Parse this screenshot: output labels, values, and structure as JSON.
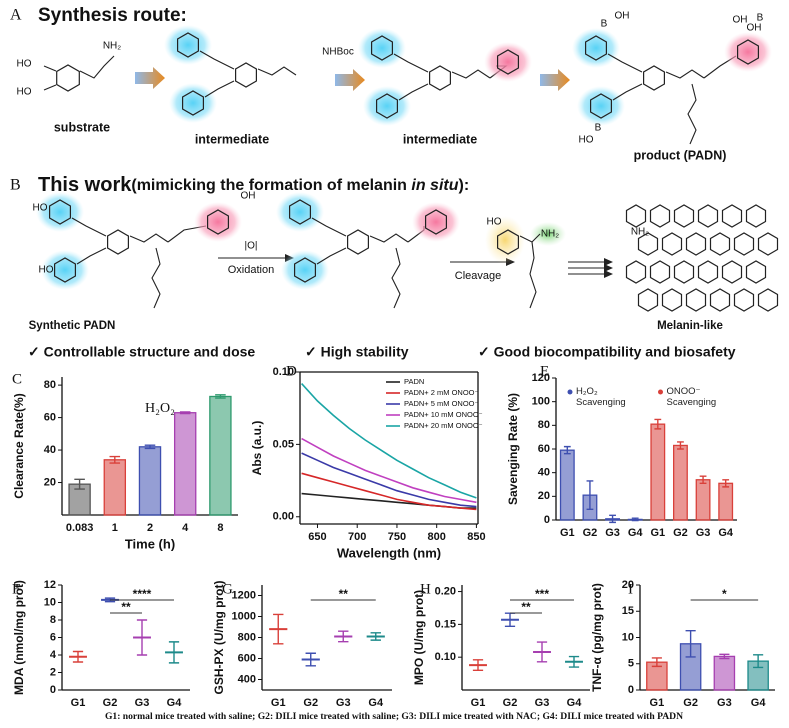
{
  "scheme_a": {
    "letter": "A",
    "title": "Synthesis route:",
    "labels": [
      "substrate",
      "intermediate",
      "intermediate",
      "product (PADN)"
    ],
    "atoms": [
      "HO",
      "HO",
      "NH₂",
      "NHBoc",
      "B",
      "OH",
      "HO",
      "B",
      "OH",
      "B",
      "OH"
    ]
  },
  "scheme_b": {
    "letter": "B",
    "title_parts": [
      "This work",
      "(mimicking the formation of melanin ",
      "in situ",
      "):"
    ],
    "labels": [
      "Synthetic PADN",
      "Melanin-like"
    ],
    "reagent": "|O|",
    "steps": [
      "Oxidation",
      "Cleavage"
    ],
    "atoms": [
      "HO",
      "HO",
      "NH₂",
      "OH",
      "HO",
      "NH₂"
    ],
    "features": [
      "✓ Controllable structure and dose",
      "✓ High stability",
      "✓ Good biocompatibility and biosafety"
    ]
  },
  "chart_data": [
    {
      "type": "bar",
      "panel": "C",
      "annotation": "H₂O₂",
      "categories": [
        "0.083",
        "1",
        "2",
        "4",
        "8"
      ],
      "values": [
        19,
        34,
        42,
        63,
        73
      ],
      "errors": [
        3,
        2,
        1,
        0.5,
        1
      ],
      "colors": [
        "#555555",
        "#d9403a",
        "#3e4fb0",
        "#a63fb0",
        "#2e9a6e"
      ],
      "ylim": [
        0,
        85
      ],
      "yticks": [
        20,
        40,
        60,
        80
      ],
      "xlabel": "Time (h)",
      "ylabel": "Clearance Rate(%)"
    },
    {
      "type": "line",
      "panel": "D",
      "box": true,
      "legend": "upper right",
      "x": [
        630,
        650,
        670,
        690,
        710,
        730,
        750,
        770,
        790,
        810,
        830,
        850
      ],
      "series": [
        {
          "name": "PADN",
          "color": "#222222",
          "values": [
            0.016,
            0.015,
            0.014,
            0.013,
            0.012,
            0.011,
            0.01,
            0.009,
            0.008,
            0.007,
            0.006,
            0.006
          ]
        },
        {
          "name": "PADN+ 2 mM ONOO⁻",
          "color": "#d62728",
          "values": [
            0.03,
            0.027,
            0.024,
            0.021,
            0.018,
            0.015,
            0.012,
            0.01,
            0.008,
            0.007,
            0.006,
            0.005
          ]
        },
        {
          "name": "PADN+ 5 mM ONOO⁻",
          "color": "#3a3aa8",
          "values": [
            0.044,
            0.039,
            0.034,
            0.03,
            0.026,
            0.022,
            0.018,
            0.015,
            0.012,
            0.01,
            0.008,
            0.007
          ]
        },
        {
          "name": "PADN+ 10 mM ONOO⁻",
          "color": "#c040c0",
          "values": [
            0.054,
            0.048,
            0.042,
            0.037,
            0.032,
            0.028,
            0.024,
            0.02,
            0.017,
            0.014,
            0.012,
            0.01
          ]
        },
        {
          "name": "PADN+ 20 mM ONOO⁻",
          "color": "#1aa5a5",
          "values": [
            0.092,
            0.08,
            0.07,
            0.061,
            0.053,
            0.046,
            0.039,
            0.033,
            0.027,
            0.022,
            0.017,
            0.013
          ]
        }
      ],
      "xlim": [
        628,
        852
      ],
      "xticks": [
        650,
        700,
        750,
        800,
        850
      ],
      "ylim": [
        -0.005,
        0.1
      ],
      "yticks": [
        {
          "value": 0,
          "label": "0.00"
        },
        {
          "value": 0.05,
          "label": "0.05"
        },
        {
          "value": 0.1,
          "label": "0.10"
        }
      ],
      "xlabel": "Wavelength (nm)",
      "ylabel": "Abs (a.u.)"
    },
    {
      "type": "bar",
      "panel": "E",
      "legend": "upper center",
      "categories": [
        "G1",
        "G2",
        "G3",
        "G4",
        "G1",
        "G2",
        "G3",
        "G4"
      ],
      "series": [
        {
          "name": "H₂O₂ Scavenging",
          "color": "#3e4fb0",
          "values": [
            59,
            21,
            1,
            0.5,
            null,
            null,
            null,
            null
          ],
          "errors": [
            3,
            12,
            3,
            1,
            null,
            null,
            null,
            null
          ]
        },
        {
          "name": "ONOO⁻ Scavenging",
          "color": "#d9403a",
          "values": [
            null,
            null,
            null,
            null,
            81,
            63,
            34,
            31
          ],
          "errors": [
            null,
            null,
            null,
            null,
            4,
            3,
            3,
            3
          ]
        }
      ],
      "ylim": [
        0,
        120
      ],
      "yticks": [
        0,
        20,
        40,
        60,
        80,
        100,
        120
      ],
      "ylabel": "Savenging Rate (%)"
    },
    {
      "type": "dot",
      "panel": "F",
      "categories": [
        "G1",
        "G2",
        "G3",
        "G4"
      ],
      "values": [
        3.8,
        10.3,
        6,
        4.3
      ],
      "errors": [
        0.6,
        0.2,
        2,
        1.2
      ],
      "colors": [
        "#d9403a",
        "#3e4fb0",
        "#a63fb0",
        "#1d8a8a"
      ],
      "ylim": [
        0,
        12
      ],
      "yticks": [
        0,
        2,
        4,
        6,
        8,
        10,
        12
      ],
      "ylabel": "MDA (nmol/mg prot)",
      "annotations": [
        {
          "text": "****",
          "from": 1,
          "to": 3
        },
        {
          "text": "**",
          "from": 1,
          "to": 2
        }
      ]
    },
    {
      "type": "dot",
      "panel": "G",
      "categories": [
        "G1",
        "G2",
        "G3",
        "G4"
      ],
      "values": [
        880,
        590,
        810,
        810
      ],
      "errors": [
        140,
        60,
        50,
        35
      ],
      "colors": [
        "#d9403a",
        "#3e4fb0",
        "#a63fb0",
        "#1d8a8a"
      ],
      "ylim": [
        300,
        1300
      ],
      "yticks": [
        400,
        600,
        800,
        1000,
        1200
      ],
      "ylabel": "GSH-PX (U/mg prot)",
      "annotations": [
        {
          "text": "**",
          "from": 1,
          "to": 3
        }
      ]
    },
    {
      "type": "dot",
      "panel": "H",
      "categories": [
        "G1",
        "G2",
        "G3",
        "G4"
      ],
      "values": [
        0.088,
        0.157,
        0.108,
        0.093
      ],
      "errors": [
        0.008,
        0.01,
        0.015,
        0.008
      ],
      "colors": [
        "#d9403a",
        "#3e4fb0",
        "#a63fb0",
        "#1d8a8a"
      ],
      "ylim": [
        0.05,
        0.21
      ],
      "yticks": [
        {
          "value": 0.1,
          "label": "0.10"
        },
        {
          "value": 0.15,
          "label": "0.15"
        },
        {
          "value": 0.2,
          "label": "0.20"
        }
      ],
      "ylabel": "MPO (U/mg prot)",
      "annotations": [
        {
          "text": "***",
          "from": 1,
          "to": 3
        },
        {
          "text": "**",
          "from": 1,
          "to": 2
        }
      ]
    },
    {
      "type": "bar",
      "panel": "I",
      "categories": [
        "G1",
        "G2",
        "G3",
        "G4"
      ],
      "values": [
        5.3,
        8.8,
        6.4,
        5.5
      ],
      "errors": [
        0.8,
        2.5,
        0.4,
        1.2
      ],
      "colors": [
        "#d9403a",
        "#3e4fb0",
        "#a63fb0",
        "#1d8a8a"
      ],
      "ylim": [
        0,
        20
      ],
      "yticks": [
        0,
        5,
        10,
        15,
        20
      ],
      "ylabel": "TNF-α (pg/mg prot)",
      "annotations": [
        {
          "text": "*",
          "from": 1,
          "to": 3
        }
      ]
    }
  ],
  "footer": "G1: normal mice treated with saline; G2: DILI mice treated with saline; G3: DILI mice treated with NAC; G4: DILI mice treated with PADN"
}
